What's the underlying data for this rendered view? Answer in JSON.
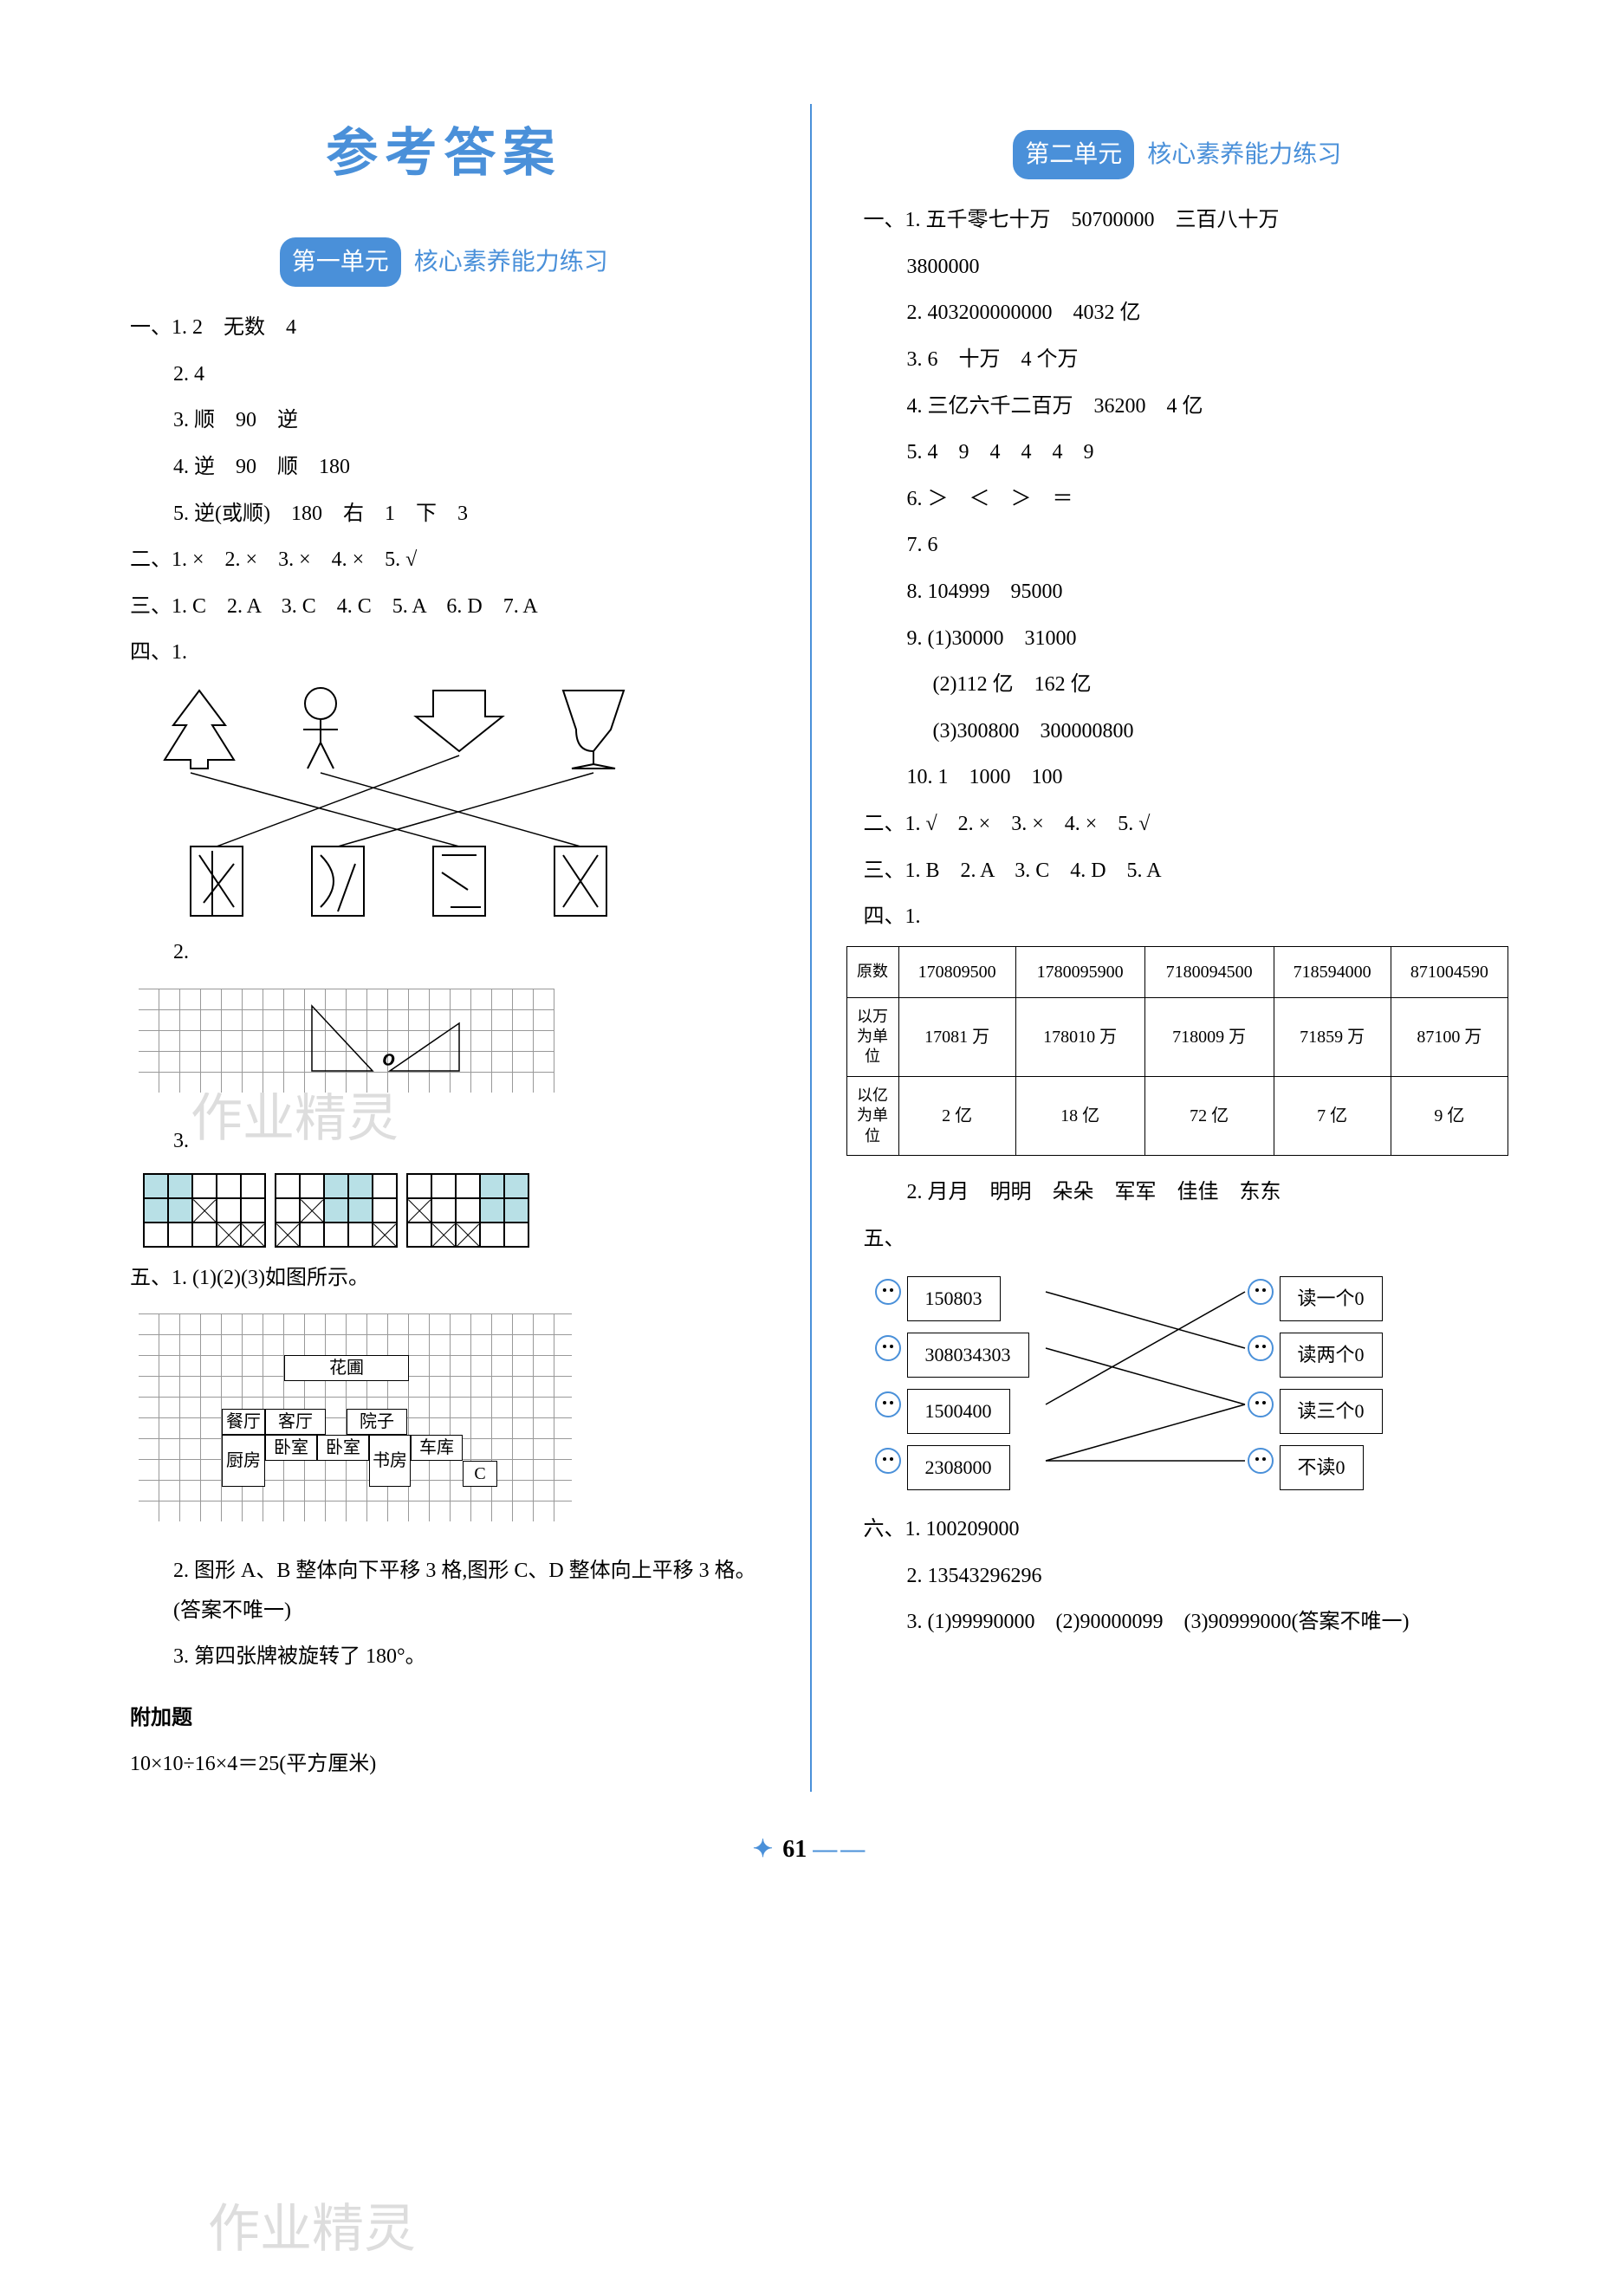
{
  "page": {
    "title": "参考答案",
    "number": "61"
  },
  "unit1": {
    "badge": "第一单元",
    "title": "核心素养能力练习",
    "q1": {
      "label": "一、",
      "items": [
        "1. 2　无数　4",
        "2. 4",
        "3. 顺　90　逆",
        "4. 逆　90　顺　180",
        "5. 逆(或顺)　180　右　1　下　3"
      ]
    },
    "q2": {
      "label": "二、",
      "text": "1. ×　2. ×　3. ×　4. ×　5. √"
    },
    "q3": {
      "label": "三、",
      "text": "1. C　2. A　3. C　4. C　5. A　6. D　7. A"
    },
    "q4": {
      "label": "四、1."
    },
    "q4_2": "2.",
    "q4_3": "3.",
    "q4_grids": [
      [
        [
          1,
          1,
          0,
          0,
          0
        ],
        [
          1,
          1,
          2,
          0,
          0
        ],
        [
          0,
          0,
          0,
          2,
          2
        ]
      ],
      [
        [
          0,
          0,
          1,
          1,
          0
        ],
        [
          0,
          2,
          1,
          1,
          0
        ],
        [
          2,
          0,
          0,
          0,
          2
        ]
      ],
      [
        [
          0,
          0,
          0,
          1,
          1
        ],
        [
          2,
          0,
          0,
          1,
          1
        ],
        [
          0,
          2,
          2,
          0,
          0
        ]
      ]
    ],
    "q5": {
      "label": "五、1. ",
      "text": "(1)(2)(3)如图所示。",
      "floorplan": {
        "rooms": [
          "花圃",
          "餐厅",
          "客厅",
          "院子",
          "厨房",
          "卧室",
          "卧室",
          "书房",
          "车库",
          "C"
        ]
      },
      "item2": "2. 图形 A、B 整体向下平移 3 格,图形 C、D 整体向上平移 3 格。(答案不唯一)",
      "item3": "3. 第四张牌被旋转了 180°。"
    },
    "extra": {
      "label": "附加题",
      "text": "10×10÷16×4＝25(平方厘米)"
    }
  },
  "unit2": {
    "badge": "第二单元",
    "title": "核心素养能力练习",
    "q1": {
      "label": "一、",
      "items": [
        "1. 五千零七十万　50700000　三百八十万",
        "3800000",
        "2. 403200000000　4032 亿",
        "3. 6　十万　4 个万",
        "4. 三亿六千二百万　36200　4 亿",
        "5. 4　9　4　4　4　9",
        "6. ＞　＜　＞　＝",
        "7. 6",
        "8. 104999　95000",
        "9. (1)30000　31000",
        "(2)112 亿　162 亿",
        "(3)300800　300000800",
        "10. 1　1000　100"
      ]
    },
    "q2": {
      "label": "二、",
      "text": "1. √　2. ×　3. ×　4. ×　5. √"
    },
    "q3": {
      "label": "三、",
      "text": "1. B　2. A　3. C　4. D　5. A"
    },
    "q4": {
      "label": "四、1.",
      "table": {
        "headers": [
          "原数",
          "170809500",
          "1780095900",
          "7180094500",
          "718594000",
          "871004590"
        ],
        "rows": [
          [
            "以万为单位",
            "17081 万",
            "178010 万",
            "718009 万",
            "71859 万",
            "87100 万"
          ],
          [
            "以亿为单位",
            "2 亿",
            "18 亿",
            "72 亿",
            "7 亿",
            "9 亿"
          ]
        ]
      },
      "item2": "2. 月月　明明　朵朵　军军　佳佳　东东"
    },
    "q5": {
      "label": "五、",
      "left": [
        "150803",
        "308034303",
        "1500400",
        "2308000"
      ],
      "right": [
        "读一个0",
        "读两个0",
        "读三个0",
        "不读0"
      ],
      "lines": [
        [
          0,
          1
        ],
        [
          1,
          2
        ],
        [
          2,
          0
        ],
        [
          3,
          2
        ],
        [
          3,
          3
        ]
      ]
    },
    "q6": {
      "label": "六、",
      "items": [
        "1. 100209000",
        "2. 13543296296",
        "3. (1)99990000　(2)90000099　(3)90999000(答案不唯一)"
      ]
    }
  },
  "colors": {
    "accent": "#4a90d9",
    "shaded": "#b8e0e6",
    "text": "#000000",
    "grid": "#999999"
  },
  "watermarks": [
    "作业精灵",
    "作业精灵"
  ]
}
